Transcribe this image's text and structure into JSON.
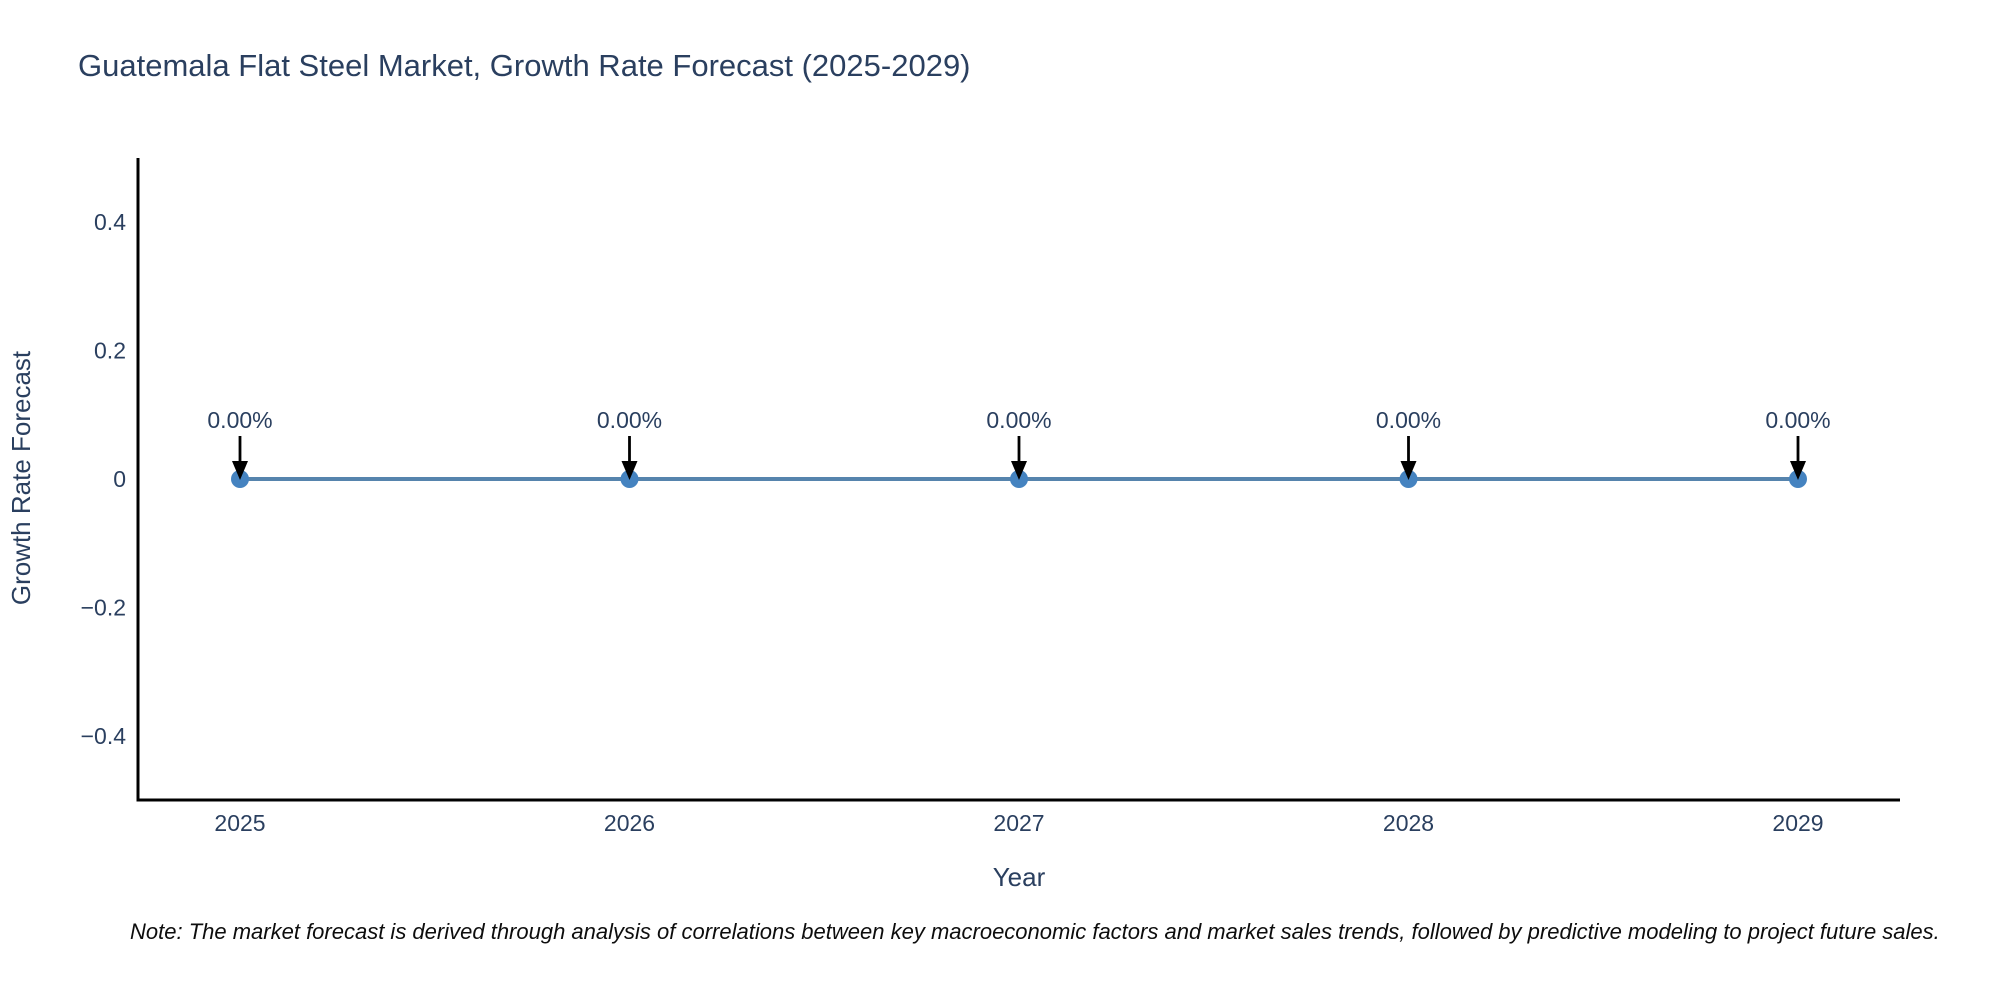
{
  "chart_data": {
    "type": "line",
    "title": "Guatemala Flat Steel Market, Growth Rate Forecast (2025-2029)",
    "xlabel": "Year",
    "ylabel": "Growth Rate Forecast",
    "x": [
      2025,
      2026,
      2027,
      2028,
      2029
    ],
    "x_tick_labels": [
      "2025",
      "2026",
      "2027",
      "2028",
      "2029"
    ],
    "series": [
      {
        "name": "Growth Rate Forecast",
        "values": [
          0,
          0,
          0,
          0,
          0
        ],
        "point_labels": [
          "0.00%",
          "0.00%",
          "0.00%",
          "0.00%",
          "0.00%"
        ]
      }
    ],
    "y_ticks": [
      0.4,
      0.2,
      0,
      -0.2,
      -0.4
    ],
    "y_tick_labels": [
      "0.4",
      "0.2",
      "0",
      "−0.2",
      "−0.4"
    ],
    "ylim": [
      -0.5,
      0.5
    ],
    "grid": false,
    "legend": "none",
    "annotation_style": "black-arrow-down-to-point",
    "colors": {
      "line": "#5684ad",
      "marker": "#4583c0",
      "axis": "#000000",
      "text": "#2a3f5f",
      "arrow": "#000000",
      "background": "#ffffff"
    }
  },
  "note": "Note: The market forecast is derived through analysis of correlations between key macroeconomic factors and market sales trends, followed by predictive modeling to project future sales."
}
